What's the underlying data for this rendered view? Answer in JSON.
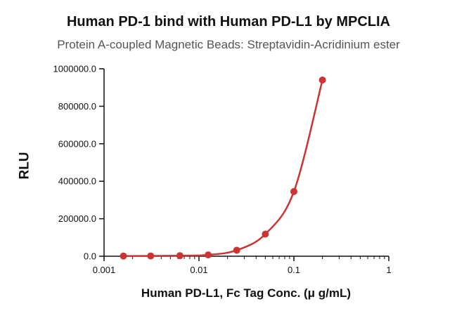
{
  "chart_data": {
    "type": "line",
    "title": "Human PD-1 bind with Human PD-L1 by MPCLIA",
    "subtitle": "Protein A-coupled Magnetic Beads: Streptavidin-Acridinium ester",
    "xlabel": "Human PD-L1, Fc Tag Conc. (μ g/mL)",
    "ylabel": "RLU",
    "x_scale": "log",
    "xlim": [
      0.001,
      1
    ],
    "ylim": [
      0,
      1000000
    ],
    "x_ticks": [
      0.001,
      0.01,
      0.1,
      1
    ],
    "x_tick_labels": [
      "0.001",
      "0.01",
      "0.1",
      "1"
    ],
    "y_ticks": [
      0,
      200000,
      400000,
      600000,
      800000,
      1000000
    ],
    "y_tick_labels": [
      "0.0",
      "200000.0",
      "400000.0",
      "600000.0",
      "800000.0",
      "1000000.0"
    ],
    "grid": false,
    "color": "#cc3333",
    "series": [
      {
        "x": [
          0.0016,
          0.0031,
          0.0063,
          0.0125,
          0.025,
          0.05,
          0.1,
          0.2
        ],
        "y": [
          1000,
          1500,
          3000,
          7000,
          32000,
          118000,
          345000,
          940000
        ]
      }
    ]
  }
}
